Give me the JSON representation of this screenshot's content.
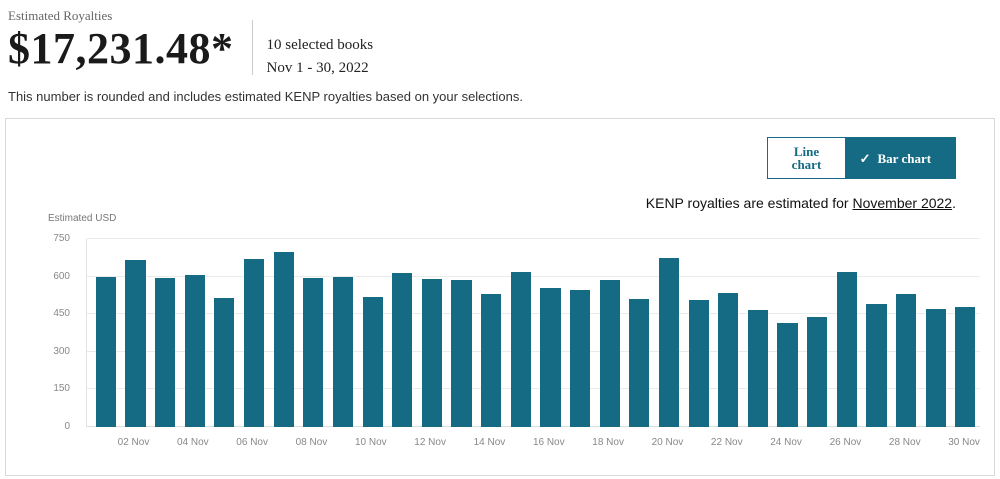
{
  "header": {
    "label": "Estimated Royalties",
    "amount": "$17,231.48*",
    "selected_books": "10 selected books",
    "date_range": "Nov 1 - 30, 2022",
    "note": "This number is rounded and includes estimated KENP royalties based on your selections."
  },
  "panel": {
    "toggle": {
      "line_label": "Line chart",
      "bar_label": "Bar chart",
      "check_glyph": "✓"
    },
    "kenp_note_prefix": "KENP royalties are estimated for ",
    "kenp_note_link": "November 2022",
    "kenp_note_suffix": "."
  },
  "colors": {
    "accent_teal": "#156b84",
    "gridline": "#ebebeb",
    "axis_text": "#888888"
  },
  "chart_data": {
    "type": "bar",
    "title": "",
    "xlabel": "",
    "ylabel": "Estimated USD",
    "ylim": [
      0,
      750
    ],
    "yticks": [
      750,
      600,
      450,
      300,
      150,
      0
    ],
    "grid": true,
    "legend_position": "none",
    "bar_color": "#156b84",
    "categories": [
      "01 Nov",
      "02 Nov",
      "03 Nov",
      "04 Nov",
      "05 Nov",
      "06 Nov",
      "07 Nov",
      "08 Nov",
      "09 Nov",
      "10 Nov",
      "11 Nov",
      "12 Nov",
      "13 Nov",
      "14 Nov",
      "15 Nov",
      "16 Nov",
      "17 Nov",
      "18 Nov",
      "19 Nov",
      "20 Nov",
      "21 Nov",
      "22 Nov",
      "23 Nov",
      "24 Nov",
      "25 Nov",
      "26 Nov",
      "27 Nov",
      "28 Nov",
      "29 Nov",
      "30 Nov"
    ],
    "x_tick_labels_shown": [
      "02 Nov",
      "04 Nov",
      "06 Nov",
      "08 Nov",
      "10 Nov",
      "12 Nov",
      "14 Nov",
      "16 Nov",
      "18 Nov",
      "20 Nov",
      "22 Nov",
      "24 Nov",
      "26 Nov",
      "28 Nov",
      "30 Nov"
    ],
    "values": [
      600,
      665,
      595,
      605,
      515,
      670,
      700,
      595,
      600,
      520,
      615,
      590,
      585,
      530,
      620,
      555,
      545,
      585,
      510,
      675,
      505,
      535,
      465,
      415,
      440,
      620,
      490,
      530,
      470,
      480
    ]
  }
}
